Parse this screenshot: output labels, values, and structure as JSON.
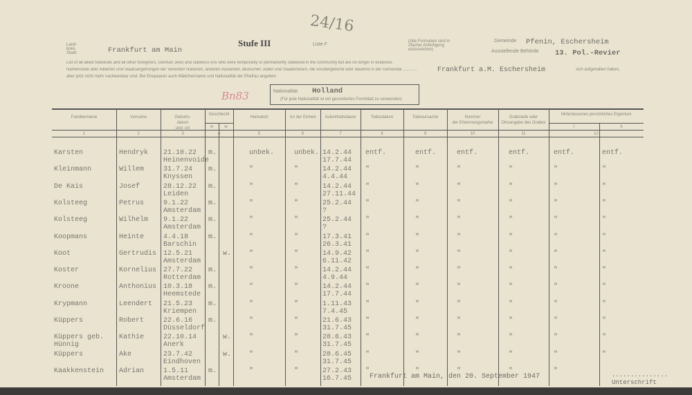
{
  "header": {
    "handwritten_number": "24/16",
    "title": "Stufe III",
    "list": "Liste F",
    "landkreis_label": "Land-\nkreis\nStadt-",
    "city": "Frankfurt am Main",
    "note": "(Alle Formulare sind in 2facher Anfertigung einzureichen)",
    "gemeinde_label": "Gemeinde",
    "gemeinde": "Pfenin, Eschersheim",
    "behoerde_label": "Ausstellende Behörde",
    "behoerde": "13. Pol.-Revier",
    "intro_en": "List of all allied Nationals and all other foreigners, German Jews and stateless ens who were temporarily or permanently stationed in the community but are no longer in evidence.",
    "intro_de": "Namensliste aller Alliierten und Staatsangehörigen der Vereinten Nationen, anderen Ausländer, deutschen Juden und Staatenlosen, die vorübergehend oder dauernd in der Gemeinde ............",
    "intro_de2": "aber jetzt nicht mehr nachweisbar sind. Bei Ehepaaren auch Mädchenname und Nationalität der Ehefrau angeben",
    "gemeinde2": "Frankfurt a.M. Eschersheim",
    "intro_end": "sich aufgehalten haben,",
    "red_mark": "Bn83",
    "nationality_label": "Nationalität",
    "nationality": "Holland",
    "nationality_note": "(Für jede Nationalität ist ein gesondertes Formblatt zu verwenden)"
  },
  "columns": [
    {
      "label": "Familienname",
      "num": "1"
    },
    {
      "label": "Vorname",
      "num": "2"
    },
    {
      "label": "Geburts-\ndatum\nund -ort",
      "num": "3"
    },
    {
      "label": "Geschlecht",
      "num": "4",
      "sub": [
        "m",
        "w"
      ]
    },
    {
      "label": "Heimatort",
      "num": "5"
    },
    {
      "label": "An der Einheit",
      "num": "6"
    },
    {
      "label": "Aufenthaltsdauer",
      "num": "7"
    },
    {
      "label": "Todesdatum",
      "num": "8"
    },
    {
      "label": "Todesursache",
      "num": "9"
    },
    {
      "label": "Nummer\nder Erkennungsmarke",
      "num": "10"
    },
    {
      "label": "Grabstelle oder\nOrtsangabe des Grabes",
      "num": "11"
    },
    {
      "label": "Hinterlassenes persönliches Eigentum",
      "num": "12",
      "sub": [
        "I",
        "II"
      ]
    }
  ],
  "rows": [
    {
      "surname": "Karsten",
      "first": "Hendryk",
      "birth": "21.10.22",
      "place": "Heinenvoide",
      "m": "m.",
      "w": "",
      "home": "unbek.",
      "unit": "unbek.",
      "stay1": "14.2.44",
      "stay2": "17.7.44",
      "d": [
        "entf.",
        "entf.",
        "entf.",
        "entf.",
        "entf.",
        "entf."
      ]
    },
    {
      "surname": "Kleinmann",
      "first": "Willem",
      "birth": "31.7.24",
      "place": "Knyssen",
      "m": "m.",
      "w": "",
      "home": "\"",
      "unit": "\"",
      "stay1": "14.2.44",
      "stay2": "4.4.44",
      "d": [
        "\"",
        "\"",
        "\"",
        "\"",
        "\"",
        "\""
      ]
    },
    {
      "surname": "De Kais",
      "first": "Josef",
      "birth": "28.12.22",
      "place": "Leiden",
      "m": "m.",
      "w": "",
      "home": "\"",
      "unit": "\"",
      "stay1": "14.2.44",
      "stay2": "27.11.44",
      "d": [
        "\"",
        "\"",
        "\"",
        "\"",
        "\"",
        "\""
      ]
    },
    {
      "surname": "Kolsteeg",
      "first": "Petrus",
      "birth": "9.1.22",
      "place": "Amsterdam",
      "m": "m.",
      "w": "",
      "home": "\"",
      "unit": "\"",
      "stay1": "25.2.44",
      "stay2": "?",
      "d": [
        "\"",
        "\"",
        "\"",
        "\"",
        "\"",
        "\""
      ]
    },
    {
      "surname": "Kolsteeg",
      "first": "Wilhelm",
      "birth": "9.1.22",
      "place": "Amsterdam",
      "m": "m.",
      "w": "",
      "home": "\"",
      "unit": "\"",
      "stay1": "25.2.44",
      "stay2": "?",
      "d": [
        "\"",
        "\"",
        "\"",
        "\"",
        "\"",
        "\""
      ]
    },
    {
      "surname": "Koopmans",
      "first": "Heinte",
      "birth": "4.4.18",
      "place": "Barschin",
      "m": "m.",
      "w": "",
      "home": "\"",
      "unit": "\"",
      "stay1": "17.3.41",
      "stay2": "26.3.41",
      "d": [
        "\"",
        "\"",
        "\"",
        "\"",
        "\"",
        "\""
      ]
    },
    {
      "surname": "Koot",
      "first": "Gertrudis",
      "birth": "12.5.21",
      "place": "Amsterdam",
      "m": "",
      "w": "w.",
      "home": "\"",
      "unit": "\"",
      "stay1": "14.9.42",
      "stay2": "6.11.42",
      "d": [
        "\"",
        "\"",
        "\"",
        "\"",
        "\"",
        "\""
      ]
    },
    {
      "surname": "Koster",
      "first": "Kornelius",
      "birth": "27.7.22",
      "place": "Rotterdam",
      "m": "m.",
      "w": "",
      "home": "\"",
      "unit": "\"",
      "stay1": "14.2.44",
      "stay2": "4.9.44",
      "d": [
        "\"",
        "\"",
        "\"",
        "\"",
        "\"",
        "\""
      ]
    },
    {
      "surname": "Kroone",
      "first": "Anthonius",
      "birth": "10.3.18",
      "place": "Heemstede",
      "m": "m.",
      "w": "",
      "home": "\"",
      "unit": "\"",
      "stay1": "14.2.44",
      "stay2": "17.7.44",
      "d": [
        "\"",
        "\"",
        "\"",
        "\"",
        "\"",
        "\""
      ]
    },
    {
      "surname": "Krypmann",
      "first": "Leendert",
      "birth": "21.5.23",
      "place": "Kriempen",
      "m": "m.",
      "w": "",
      "home": "\"",
      "unit": "\"",
      "stay1": "1.11.43",
      "stay2": "7.4.45",
      "d": [
        "\"",
        "\"",
        "\"",
        "\"",
        "\"",
        "\""
      ]
    },
    {
      "surname": "Küppers",
      "first": "Robert",
      "birth": "22.6.16",
      "place": "Düsseldorf",
      "m": "m.",
      "w": "",
      "home": "\"",
      "unit": "\"",
      "stay1": "21.6.43",
      "stay2": "31.7.45",
      "d": [
        "\"",
        "\"",
        "\"",
        "\"",
        "\"",
        "\""
      ]
    },
    {
      "surname": "Küppers geb. Hünnig",
      "first": "Kathie",
      "birth": "22.10.14",
      "place": "Anerk",
      "m": "",
      "w": "w.",
      "home": "\"",
      "unit": "\"",
      "stay1": "28.6.43",
      "stay2": "31.7.45",
      "d": [
        "\"",
        "\"",
        "\"",
        "\"",
        "\"",
        "\""
      ]
    },
    {
      "surname": "Küppers",
      "first": "Ake",
      "birth": "23.7.42",
      "place": "Eindhoven",
      "m": "",
      "w": "w.",
      "home": "\"",
      "unit": "\"",
      "stay1": "28.6.45",
      "stay2": "31.7.45",
      "d": [
        "\"",
        "\"",
        "\"",
        "\"",
        "\"",
        "\""
      ]
    },
    {
      "surname": "Kaakkenstein",
      "first": "Adrian",
      "birth": "1.5.11",
      "place": "Amsterdam",
      "m": "m.",
      "w": "",
      "home": "\"",
      "unit": "\"",
      "stay1": "27.2.43",
      "stay2": "16.7.45",
      "d": [
        "\"",
        "\"",
        "\"",
        "\"",
        "\"",
        ""
      ]
    }
  ],
  "footer": {
    "place_date": "Frankfurt am Main, den 20. September 1947",
    "signature_dots": "...............",
    "signature_label": "Unterschrift"
  }
}
